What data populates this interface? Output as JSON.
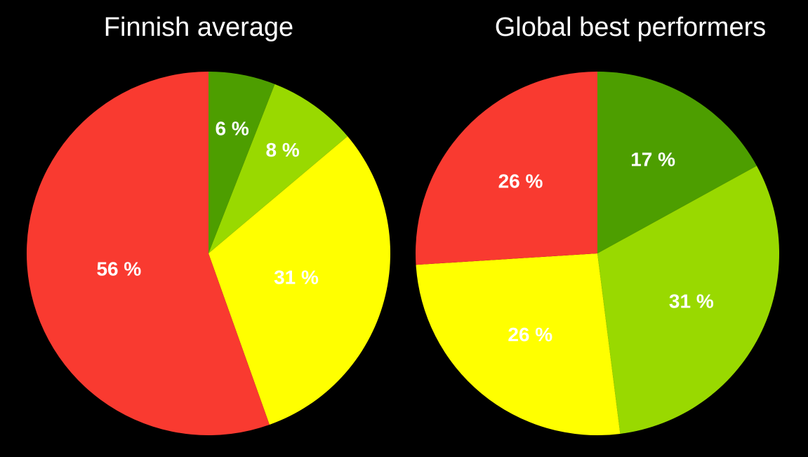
{
  "colors": {
    "background": "#000000",
    "dark_green": "#4d9e00",
    "light_green": "#99d900",
    "yellow": "#ffff00",
    "red": "#f93a30",
    "label_text": "#ffffff"
  },
  "chart_data": [
    {
      "type": "pie",
      "title": "Finnish average",
      "start": "12 o'clock",
      "direction": "clockwise",
      "slices": [
        {
          "value": 6,
          "label": "6 %",
          "color": "#4d9e00"
        },
        {
          "value": 8,
          "label": "8 %",
          "color": "#99d900"
        },
        {
          "value": 31,
          "label": "31 %",
          "color": "#ffff00"
        },
        {
          "value": 56,
          "label": "56 %",
          "color": "#f93a30"
        }
      ]
    },
    {
      "type": "pie",
      "title": "Global best performers",
      "start": "12 o'clock",
      "direction": "clockwise",
      "slices": [
        {
          "value": 17,
          "label": "17 %",
          "color": "#4d9e00"
        },
        {
          "value": 31,
          "label": "31 %",
          "color": "#99d900"
        },
        {
          "value": 26,
          "label": "26 %",
          "color": "#ffff00"
        },
        {
          "value": 26,
          "label": "26 %",
          "color": "#f93a30"
        }
      ]
    }
  ]
}
